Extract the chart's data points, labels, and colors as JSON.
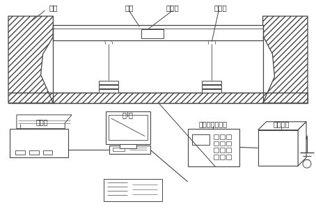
{
  "bg_color": "#ffffff",
  "lc": "#444444",
  "labels": {
    "jichu": "基础",
    "chengtai": "称台",
    "jieliehe": "接线盒",
    "chuanganqi": "传感器",
    "dayinji": "打印机",
    "weiji": "微 机",
    "chengzhong": "称重显示控制器",
    "wenyadianyuan": "稳压电源"
  }
}
